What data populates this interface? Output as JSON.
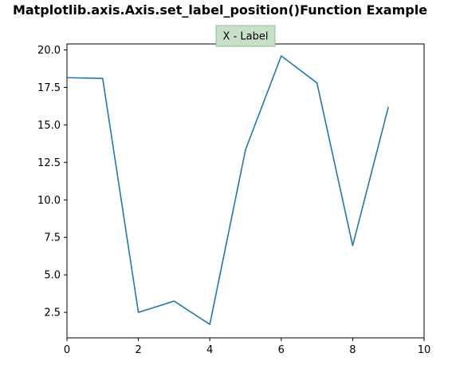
{
  "title": "Matplotlib.axis.Axis.set_label_position()Function Example",
  "chart_data": {
    "type": "line",
    "title": "Matplotlib.axis.Axis.set_label_position()Function Example",
    "xlabel": "X - Label",
    "xlabel_position": "top",
    "ylabel": "",
    "x": [
      0,
      1,
      2,
      3,
      4,
      5,
      6,
      7,
      8,
      9
    ],
    "series": [
      {
        "values": [
          18.15,
          18.1,
          2.5,
          3.25,
          1.7,
          13.35,
          19.6,
          17.8,
          6.95,
          16.2
        ],
        "color": "#1f77b4"
      }
    ],
    "xlim": [
      0,
      10
    ],
    "ylim": [
      0.8,
      20.4
    ],
    "xticks": [
      0,
      2,
      4,
      6,
      8,
      10
    ],
    "yticks": [
      2.5,
      5.0,
      7.5,
      10.0,
      12.5,
      15.0,
      17.5,
      20.0
    ],
    "xtick_labels": [
      "0",
      "2",
      "4",
      "6",
      "8",
      "10"
    ],
    "ytick_labels": [
      "2.5",
      "5.0",
      "7.5",
      "10.0",
      "12.5",
      "15.0",
      "17.5",
      "20.0"
    ],
    "grid": false,
    "label_box_color": "#c8e0c8",
    "label_box_edge": "#8fbc8f"
  }
}
